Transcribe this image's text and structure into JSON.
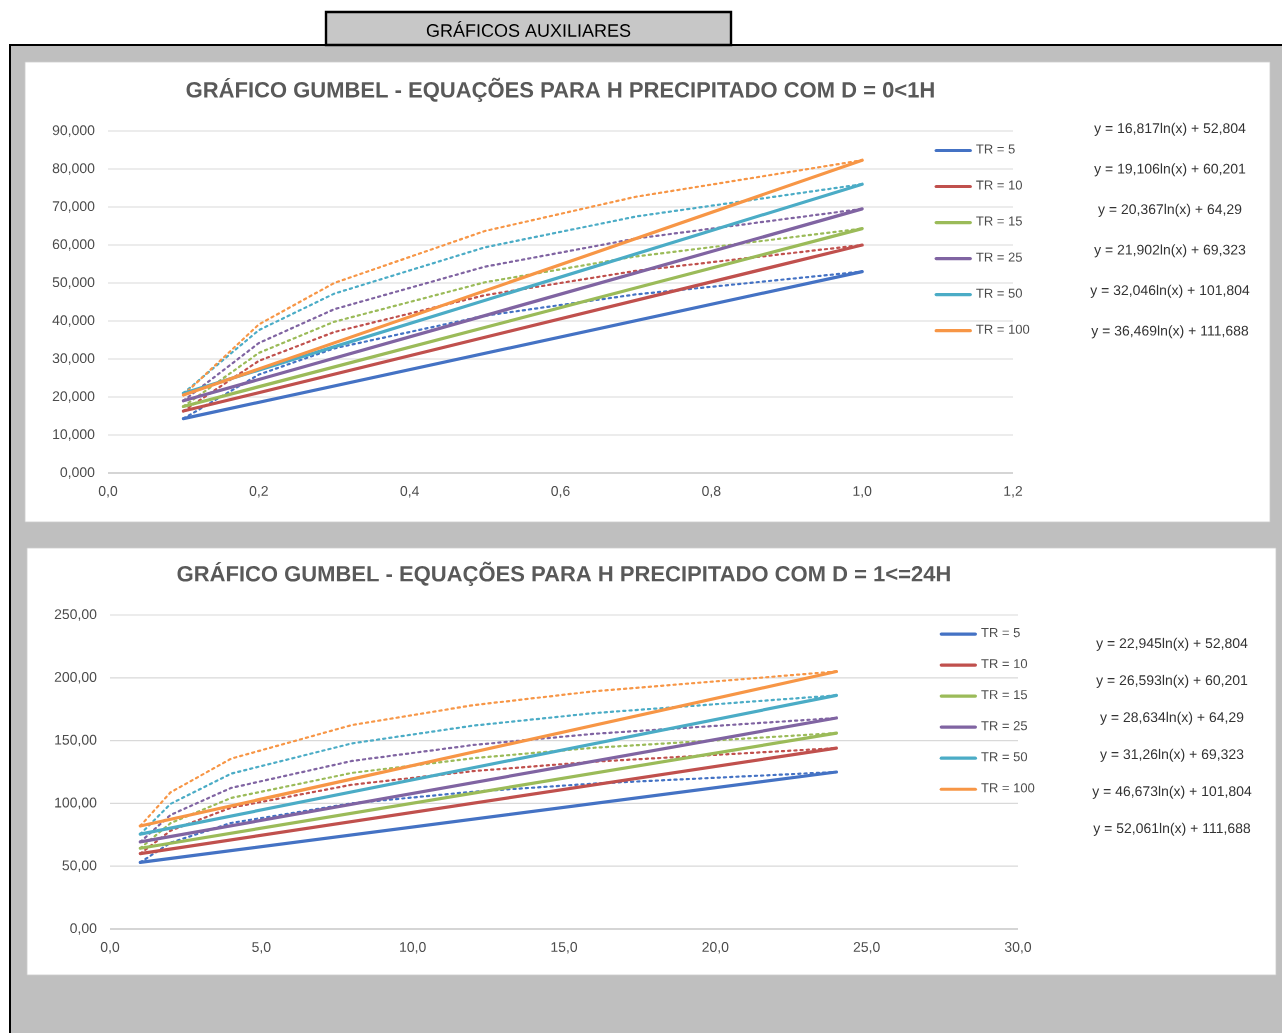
{
  "chart_data": [
    {
      "type": "line",
      "title": "GRÁFICO GUMBEL - EQUAÇÕES PARA H PRECIPITADO COM D = 0<1H",
      "annotations": [
        "GRÁFICOS AUXILIARES",
        "y = 16,817ln(x) + 52,804",
        "y = 19,106ln(x) + 60,201",
        "y = 20,367ln(x) + 64,29",
        "y = 21,902ln(x) + 69,323",
        "y = 32,046ln(x) + 101,804",
        "y = 36,469ln(x) + 111,688"
      ],
      "xlim": [
        0,
        1.2
      ],
      "xticks": [
        {
          "value": 0,
          "label": "0,0"
        },
        {
          "value": 0.2,
          "label": "0,2"
        },
        {
          "value": 0.4,
          "label": "0,4"
        },
        {
          "value": 0.6,
          "label": "0,6"
        },
        {
          "value": 0.8,
          "label": "0,8"
        },
        {
          "value": 1.0,
          "label": "1,0"
        },
        {
          "value": 1.2,
          "label": "1,2"
        }
      ],
      "ylim": [
        0,
        90
      ],
      "yticks": [
        {
          "value": 0,
          "label": "0,000"
        },
        {
          "value": 10,
          "label": "10,000"
        },
        {
          "value": 20,
          "label": "20,000"
        },
        {
          "value": 30,
          "label": "30,000"
        },
        {
          "value": 40,
          "label": "40,000"
        },
        {
          "value": 50,
          "label": "50,000"
        },
        {
          "value": 60,
          "label": "60,000"
        },
        {
          "value": 70,
          "label": "70,000"
        },
        {
          "value": 80,
          "label": "80,000"
        },
        {
          "value": 90,
          "label": "90,000"
        }
      ],
      "grid": "y",
      "legend": "top right",
      "series": [
        {
          "color": "#4472c4",
          "line_style": "dotted",
          "x": [
            0.1,
            0.2,
            0.3,
            0.5,
            0.7,
            1.0
          ],
          "values": [
            14.3,
            25.9,
            32.8,
            41.4,
            47.0,
            53
          ]
        },
        {
          "color": "#c0504d",
          "line_style": "dotted",
          "x": [
            0.1,
            0.2,
            0.3,
            0.5,
            0.7,
            1.0
          ],
          "values": [
            16.3,
            29.5,
            37.1,
            46.8,
            53.2,
            60
          ]
        },
        {
          "color": "#9bbb59",
          "line_style": "dotted",
          "x": [
            0.1,
            0.2,
            0.3,
            0.5,
            0.7,
            1.0
          ],
          "values": [
            17.5,
            31.6,
            39.8,
            50.2,
            57.0,
            64.3
          ]
        },
        {
          "color": "#8064a2",
          "line_style": "dotted",
          "x": [
            0.1,
            0.2,
            0.3,
            0.5,
            0.7,
            1.0
          ],
          "values": [
            19,
            34.2,
            43.1,
            54.3,
            61.7,
            69.5
          ]
        },
        {
          "color": "#4bacc6",
          "line_style": "dotted",
          "x": [
            0.1,
            0.2,
            0.3,
            0.5,
            0.7,
            1.0
          ],
          "values": [
            21,
            37.6,
            47.2,
            59.4,
            67.5,
            76
          ]
        },
        {
          "color": "#f79646",
          "line_style": "dotted",
          "x": [
            0.1,
            0.2,
            0.3,
            0.5,
            0.7,
            1.0
          ],
          "values": [
            20.5,
            39.1,
            50.0,
            63.7,
            72.7,
            82.3
          ]
        },
        {
          "name": "TR = 5",
          "color": "#4472c4",
          "x": [
            0.1,
            1.0
          ],
          "values": [
            14.3,
            53
          ]
        },
        {
          "name": "TR = 10",
          "color": "#c0504d",
          "x": [
            0.1,
            1.0
          ],
          "values": [
            16.3,
            60
          ]
        },
        {
          "name": "TR = 15",
          "color": "#9bbb59",
          "x": [
            0.1,
            1.0
          ],
          "values": [
            17.5,
            64.3
          ]
        },
        {
          "name": "TR = 25",
          "color": "#8064a2",
          "x": [
            0.1,
            1.0
          ],
          "values": [
            19,
            69.5
          ]
        },
        {
          "name": "TR = 50",
          "color": "#4bacc6",
          "x": [
            0.1,
            1.0
          ],
          "values": [
            21,
            76
          ]
        },
        {
          "name": "TR = 100",
          "color": "#f79646",
          "x": [
            0.1,
            1.0
          ],
          "values": [
            20.5,
            82.3
          ]
        }
      ]
    },
    {
      "type": "line",
      "title": "GRÁFICO GUMBEL - EQUAÇÕES PARA H PRECIPITADO COM D = 1<=24H",
      "annotations": [
        "y = 22,945ln(x) + 52,804",
        "y = 26,593ln(x) + 60,201",
        "y = 28,634ln(x) + 64,29",
        "y = 31,26ln(x) + 69,323",
        "y = 46,673ln(x) + 101,804",
        "y = 52,061ln(x) + 111,688"
      ],
      "xlim": [
        0,
        30
      ],
      "xticks": [
        {
          "value": 0,
          "label": "0,0"
        },
        {
          "value": 5,
          "label": "5,0"
        },
        {
          "value": 10,
          "label": "10,0"
        },
        {
          "value": 15,
          "label": "15,0"
        },
        {
          "value": 20,
          "label": "20,0"
        },
        {
          "value": 25,
          "label": "25,0"
        },
        {
          "value": 30,
          "label": "30,0"
        }
      ],
      "ylim": [
        0,
        250
      ],
      "yticks": [
        {
          "value": 0,
          "label": "0,00"
        },
        {
          "value": 50,
          "label": "50,00"
        },
        {
          "value": 100,
          "label": "100,00"
        },
        {
          "value": 150,
          "label": "150,00"
        },
        {
          "value": 200,
          "label": "200,00"
        },
        {
          "value": 250,
          "label": "250,00"
        }
      ],
      "grid": "y",
      "legend": "top right",
      "series": [
        {
          "color": "#4472c4",
          "line_style": "dotted",
          "x": [
            1,
            2,
            4,
            8,
            12,
            16,
            24
          ],
          "values": [
            53,
            68.7,
            84.4,
            100.1,
            109.3,
            115.8,
            125
          ]
        },
        {
          "color": "#c0504d",
          "line_style": "dotted",
          "x": [
            1,
            2,
            4,
            8,
            12,
            16,
            24
          ],
          "values": [
            60,
            78.3,
            96.6,
            114.9,
            125.7,
            133.2,
            144
          ]
        },
        {
          "color": "#9bbb59",
          "line_style": "dotted",
          "x": [
            1,
            2,
            4,
            8,
            12,
            16,
            24
          ],
          "values": [
            64.3,
            84.3,
            104.3,
            124.3,
            136.0,
            144.3,
            156
          ]
        },
        {
          "color": "#8064a2",
          "line_style": "dotted",
          "x": [
            1,
            2,
            4,
            8,
            12,
            16,
            24
          ],
          "values": [
            69.3,
            90.8,
            112.3,
            133.8,
            146.5,
            155.4,
            168
          ]
        },
        {
          "color": "#4bacc6",
          "line_style": "dotted",
          "x": [
            1,
            2,
            4,
            8,
            12,
            16,
            24
          ],
          "values": [
            75.5,
            99.6,
            123.7,
            147.8,
            161.9,
            171.9,
            186
          ]
        },
        {
          "color": "#f79646",
          "line_style": "dotted",
          "x": [
            1,
            2,
            4,
            8,
            12,
            16,
            24
          ],
          "values": [
            82,
            108.8,
            135.6,
            162.4,
            178.2,
            189.3,
            205
          ]
        },
        {
          "name": "TR = 5",
          "color": "#4472c4",
          "x": [
            1,
            24
          ],
          "values": [
            53,
            125
          ]
        },
        {
          "name": "TR = 10",
          "color": "#c0504d",
          "x": [
            1,
            24
          ],
          "values": [
            60,
            144
          ]
        },
        {
          "name": "TR = 15",
          "color": "#9bbb59",
          "x": [
            1,
            24
          ],
          "values": [
            64.3,
            156
          ]
        },
        {
          "name": "TR = 25",
          "color": "#8064a2",
          "x": [
            1,
            24
          ],
          "values": [
            69.3,
            168
          ]
        },
        {
          "name": "TR = 50",
          "color": "#4bacc6",
          "x": [
            1,
            24
          ],
          "values": [
            75.5,
            186
          ]
        },
        {
          "name": "TR = 100",
          "color": "#f79646",
          "x": [
            1,
            24
          ],
          "values": [
            82,
            205
          ]
        }
      ]
    }
  ]
}
